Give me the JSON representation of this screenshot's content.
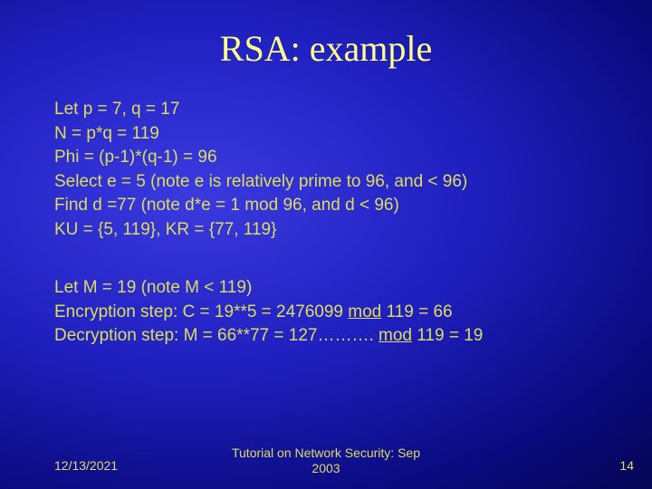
{
  "title": "RSA: example",
  "block1": {
    "l1": "Let p = 7, q = 17",
    "l2": "N = p*q = 119",
    "l3": "Phi = (p-1)*(q-1) = 96",
    "l4": "Select e = 5 (note e is relatively prime to 96, and < 96)",
    "l5": "Find d =77 (note d*e = 1 mod 96, and d < 96)",
    "l6": "KU = {5, 119}, KR = {77, 119}"
  },
  "block2": {
    "l1": "Let M = 19 (note M < 119)",
    "l2a": "Encryption step: C = 19**5 = 2476099 ",
    "l2b": "mod",
    "l2c": " 119 = 66",
    "l3a": "Decryption step: M = 66**77 = 127………. ",
    "l3b": "mod",
    "l3c": " 119 = 19"
  },
  "footer": {
    "date": "12/13/2021",
    "center1": "Tutorial on Network Security: Sep",
    "center2": "2003",
    "page": "14"
  },
  "colors": {
    "text": "#ddde5a",
    "title": "#ffff88",
    "bg_inner": "#3a3ae0",
    "bg_outer": "#020230"
  }
}
